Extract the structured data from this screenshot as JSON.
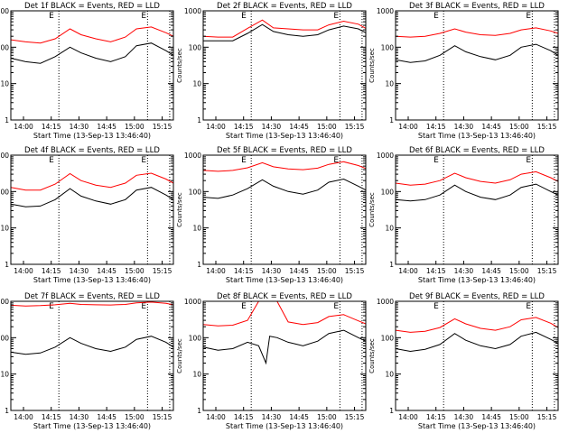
{
  "figure": {
    "xlabel": "Start Time (13-Sep-13 13:46:40)",
    "ylabel": "Counts/sec",
    "x_tick_labels": [
      "14:00",
      "14:15",
      "14:30",
      "14:45",
      "15:00",
      "15:15"
    ],
    "marker_label": "E",
    "colors": {
      "events": "#000000",
      "lld": "#ff0000",
      "axes": "#000000",
      "background": "#ffffff"
    }
  },
  "chart_data": [
    {
      "type": "line",
      "title": "Det 1f BLACK = Events, RED = LLD",
      "xlabel": "Start Time (13-Sep-13 13:46:40)",
      "ylabel": "Counts/sec",
      "yscale": "log",
      "ylim": [
        1,
        1000
      ],
      "y_ticks": [
        1,
        10,
        100,
        1000
      ],
      "y_tick_labels": [
        "1",
        "10",
        "100",
        "1000"
      ],
      "x_ticks": [
        "14:00",
        "14:15",
        "14:30",
        "14:45",
        "15:00",
        "15:15"
      ],
      "xlim_minutes": [
        -9,
        35
      ],
      "markers": [
        "E",
        "E"
      ],
      "marker_minutes": [
        3,
        28
      ],
      "vlines_minutes": [
        4,
        28,
        34
      ],
      "series": [
        {
          "name": "Events",
          "color": "#000000",
          "x_minutes": [
            -9,
            -5,
            -1,
            3,
            7,
            10,
            14,
            18,
            22,
            25,
            29,
            33,
            35
          ],
          "y": [
            50,
            40,
            36,
            55,
            100,
            70,
            50,
            40,
            55,
            110,
            130,
            80,
            60
          ]
        },
        {
          "name": "LLD",
          "color": "#ff0000",
          "x_minutes": [
            -9,
            -5,
            -1,
            3,
            7,
            10,
            14,
            18,
            22,
            25,
            29,
            33,
            35
          ],
          "y": [
            160,
            140,
            130,
            170,
            320,
            220,
            170,
            140,
            190,
            320,
            360,
            250,
            200
          ]
        }
      ]
    },
    {
      "type": "line",
      "title": "Det 2f BLACK = Events, RED = LLD",
      "xlabel": "Start Time (13-Sep-13 13:46:40)",
      "ylabel": "Counts/sec",
      "yscale": "log",
      "ylim": [
        1,
        1000
      ],
      "y_ticks": [
        1,
        10,
        100,
        1000
      ],
      "y_tick_labels": [
        "1",
        "10",
        "100",
        "1000"
      ],
      "x_ticks": [
        "14:00",
        "14:15",
        "14:30",
        "14:45",
        "15:00",
        "15:15"
      ],
      "xlim_minutes": [
        -9,
        35
      ],
      "markers": [
        "E",
        "E"
      ],
      "marker_minutes": [
        3,
        28
      ],
      "vlines_minutes": [
        4,
        28,
        34
      ],
      "series": [
        {
          "name": "Events",
          "color": "#000000",
          "x_minutes": [
            -9,
            -5,
            -1,
            3,
            7,
            10,
            14,
            18,
            22,
            25,
            29,
            33,
            35
          ],
          "y": [
            150,
            150,
            150,
            240,
            420,
            270,
            220,
            200,
            220,
            300,
            380,
            320,
            250
          ]
        },
        {
          "name": "LLD",
          "color": "#ff0000",
          "x_minutes": [
            -9,
            -5,
            -1,
            3,
            7,
            10,
            14,
            18,
            22,
            25,
            29,
            33,
            35
          ],
          "y": [
            200,
            190,
            190,
            330,
            560,
            340,
            320,
            300,
            300,
            410,
            520,
            430,
            330
          ]
        }
      ]
    },
    {
      "type": "line",
      "title": "Det 3f BLACK = Events, RED = LLD",
      "xlabel": "Start Time (13-Sep-13 13:46:40)",
      "ylabel": "Counts/sec",
      "yscale": "log",
      "ylim": [
        1,
        1000
      ],
      "y_ticks": [
        1,
        10,
        100,
        1000
      ],
      "y_tick_labels": [
        "1",
        "10",
        "100",
        "1000"
      ],
      "x_ticks": [
        "14:00",
        "14:15",
        "14:30",
        "14:45",
        "15:00",
        "15:15"
      ],
      "xlim_minutes": [
        -9,
        35
      ],
      "markers": [
        "E",
        "E"
      ],
      "marker_minutes": [
        3,
        28
      ],
      "vlines_minutes": [
        4,
        28,
        34
      ],
      "series": [
        {
          "name": "Events",
          "color": "#000000",
          "x_minutes": [
            -9,
            -5,
            -1,
            3,
            7,
            10,
            14,
            18,
            22,
            25,
            29,
            33,
            35
          ],
          "y": [
            45,
            38,
            42,
            60,
            110,
            75,
            55,
            45,
            60,
            100,
            120,
            80,
            60
          ]
        },
        {
          "name": "LLD",
          "color": "#ff0000",
          "x_minutes": [
            -9,
            -5,
            -1,
            3,
            7,
            10,
            14,
            18,
            22,
            25,
            29,
            33,
            35
          ],
          "y": [
            200,
            190,
            200,
            240,
            320,
            260,
            220,
            210,
            240,
            300,
            340,
            280,
            240
          ]
        }
      ]
    },
    {
      "type": "line",
      "title": "Det 4f BLACK = Events, RED = LLD",
      "xlabel": "Start Time (13-Sep-13 13:46:40)",
      "ylabel": "Counts/sec",
      "yscale": "log",
      "ylim": [
        1,
        1000
      ],
      "y_ticks": [
        1,
        10,
        100,
        1000
      ],
      "y_tick_labels": [
        "1",
        "10",
        "100",
        "1000"
      ],
      "x_ticks": [
        "14:00",
        "14:15",
        "14:30",
        "14:45",
        "15:00",
        "15:15"
      ],
      "xlim_minutes": [
        -9,
        35
      ],
      "markers": [
        "E",
        "E"
      ],
      "marker_minutes": [
        3,
        28
      ],
      "vlines_minutes": [
        4,
        28,
        34
      ],
      "series": [
        {
          "name": "Events",
          "color": "#000000",
          "x_minutes": [
            -9,
            -5,
            -1,
            3,
            7,
            10,
            14,
            18,
            22,
            25,
            29,
            33,
            35
          ],
          "y": [
            45,
            38,
            40,
            60,
            120,
            75,
            55,
            45,
            60,
            110,
            130,
            80,
            60
          ]
        },
        {
          "name": "LLD",
          "color": "#ff0000",
          "x_minutes": [
            -9,
            -5,
            -1,
            3,
            7,
            10,
            14,
            18,
            22,
            25,
            29,
            33,
            35
          ],
          "y": [
            130,
            110,
            110,
            160,
            310,
            200,
            150,
            130,
            170,
            280,
            320,
            220,
            170
          ]
        }
      ]
    },
    {
      "type": "line",
      "title": "Det 5f BLACK = Events, RED = LLD",
      "xlabel": "Start Time (13-Sep-13 13:46:40)",
      "ylabel": "Counts/sec",
      "yscale": "log",
      "ylim": [
        1,
        1000
      ],
      "y_ticks": [
        1,
        10,
        100,
        1000
      ],
      "y_tick_labels": [
        "1",
        "10",
        "100",
        "1000"
      ],
      "x_ticks": [
        "14:00",
        "14:15",
        "14:30",
        "14:45",
        "15:00",
        "15:15"
      ],
      "xlim_minutes": [
        -9,
        35
      ],
      "markers": [
        "E",
        "E"
      ],
      "marker_minutes": [
        3,
        28
      ],
      "vlines_minutes": [
        4,
        28,
        34
      ],
      "series": [
        {
          "name": "Events",
          "color": "#000000",
          "x_minutes": [
            -9,
            -5,
            -1,
            3,
            7,
            10,
            14,
            18,
            22,
            25,
            29,
            33,
            35
          ],
          "y": [
            70,
            65,
            80,
            120,
            210,
            140,
            100,
            85,
            110,
            180,
            220,
            140,
            110
          ]
        },
        {
          "name": "LLD",
          "color": "#ff0000",
          "x_minutes": [
            -9,
            -5,
            -1,
            3,
            7,
            10,
            14,
            18,
            22,
            25,
            29,
            33,
            35
          ],
          "y": [
            380,
            360,
            380,
            450,
            620,
            480,
            420,
            400,
            440,
            560,
            660,
            520,
            430
          ]
        }
      ]
    },
    {
      "type": "line",
      "title": "Det 6f BLACK = Events, RED = LLD",
      "xlabel": "Start Time (13-Sep-13 13:46:40)",
      "ylabel": "Counts/sec",
      "yscale": "log",
      "ylim": [
        1,
        1000
      ],
      "y_ticks": [
        1,
        10,
        100,
        1000
      ],
      "y_tick_labels": [
        "1",
        "10",
        "100",
        "1000"
      ],
      "x_ticks": [
        "14:00",
        "14:15",
        "14:30",
        "14:45",
        "15:00",
        "15:15"
      ],
      "xlim_minutes": [
        -9,
        35
      ],
      "markers": [
        "E",
        "E"
      ],
      "marker_minutes": [
        3,
        28
      ],
      "vlines_minutes": [
        4,
        28,
        34
      ],
      "series": [
        {
          "name": "Events",
          "color": "#000000",
          "x_minutes": [
            -9,
            -5,
            -1,
            3,
            7,
            10,
            14,
            18,
            22,
            25,
            29,
            33,
            35
          ],
          "y": [
            60,
            55,
            60,
            80,
            150,
            100,
            70,
            60,
            80,
            130,
            160,
            100,
            80
          ]
        },
        {
          "name": "LLD",
          "color": "#ff0000",
          "x_minutes": [
            -9,
            -5,
            -1,
            3,
            7,
            10,
            14,
            18,
            22,
            25,
            29,
            33,
            35
          ],
          "y": [
            170,
            150,
            160,
            200,
            320,
            240,
            190,
            170,
            210,
            300,
            350,
            240,
            190
          ]
        }
      ]
    },
    {
      "type": "line",
      "title": "Det 7f BLACK = Events, RED = LLD",
      "xlabel": "Start Time (13-Sep-13 13:46:40)",
      "ylabel": "Counts/sec",
      "yscale": "log",
      "ylim": [
        1,
        1000
      ],
      "y_ticks": [
        1,
        10,
        100,
        1000
      ],
      "y_tick_labels": [
        "1",
        "10",
        "100",
        "1000"
      ],
      "x_ticks": [
        "14:00",
        "14:15",
        "14:30",
        "14:45",
        "15:00",
        "15:15"
      ],
      "xlim_minutes": [
        -9,
        35
      ],
      "markers": [
        "E",
        "E"
      ],
      "marker_minutes": [
        3,
        28
      ],
      "vlines_minutes": [
        4,
        28,
        34
      ],
      "series": [
        {
          "name": "Events",
          "color": "#000000",
          "x_minutes": [
            -9,
            -5,
            -1,
            3,
            7,
            10,
            14,
            18,
            22,
            25,
            29,
            33,
            35
          ],
          "y": [
            40,
            35,
            38,
            55,
            100,
            70,
            50,
            42,
            55,
            90,
            110,
            75,
            55
          ]
        },
        {
          "name": "LLD",
          "color": "#ff0000",
          "x_minutes": [
            -9,
            -5,
            -1,
            3,
            7,
            10,
            14,
            18,
            22,
            25,
            29,
            33,
            35
          ],
          "y": [
            780,
            740,
            760,
            800,
            880,
            820,
            800,
            790,
            820,
            900,
            950,
            880,
            800
          ]
        }
      ]
    },
    {
      "type": "line",
      "title": "Det 8f BLACK = Events, RED = LLD",
      "xlabel": "Start Time (13-Sep-13 13:46:40)",
      "ylabel": "Counts/sec",
      "yscale": "log",
      "ylim": [
        1,
        1000
      ],
      "y_ticks": [
        1,
        10,
        100,
        1000
      ],
      "y_tick_labels": [
        "1",
        "10",
        "100",
        "1000"
      ],
      "x_ticks": [
        "14:00",
        "14:15",
        "14:30",
        "14:45",
        "15:00",
        "15:15"
      ],
      "xlim_minutes": [
        -9,
        35
      ],
      "markers": [
        "E",
        "E"
      ],
      "marker_minutes": [
        3,
        28
      ],
      "vlines_minutes": [
        4,
        28,
        34
      ],
      "series": [
        {
          "name": "Events",
          "color": "#000000",
          "x_minutes": [
            -9,
            -5,
            -1,
            3,
            6,
            8,
            9,
            11,
            14,
            18,
            22,
            25,
            29,
            33,
            35
          ],
          "y": [
            55,
            45,
            50,
            75,
            60,
            20,
            110,
            100,
            75,
            60,
            80,
            130,
            160,
            100,
            80
          ]
        },
        {
          "name": "LLD",
          "color": "#ff0000",
          "x_minutes": [
            -9,
            -5,
            -1,
            3,
            6,
            8,
            9,
            11,
            14,
            18,
            22,
            25,
            29,
            33,
            35
          ],
          "y": [
            230,
            210,
            220,
            300,
            1000,
            1000,
            1000,
            1000,
            270,
            230,
            260,
            380,
            430,
            290,
            240
          ]
        }
      ]
    },
    {
      "type": "line",
      "title": "Det 9f BLACK = Events, RED = LLD",
      "xlabel": "Start Time (13-Sep-13 13:46:40)",
      "ylabel": "Counts/sec",
      "yscale": "log",
      "ylim": [
        1,
        1000
      ],
      "y_ticks": [
        1,
        10,
        100,
        1000
      ],
      "y_tick_labels": [
        "1",
        "10",
        "100",
        "1000"
      ],
      "x_ticks": [
        "14:00",
        "14:15",
        "14:30",
        "14:45",
        "15:00",
        "15:15"
      ],
      "xlim_minutes": [
        -9,
        35
      ],
      "markers": [
        "E",
        "E"
      ],
      "marker_minutes": [
        3,
        28
      ],
      "vlines_minutes": [
        4,
        28,
        34
      ],
      "series": [
        {
          "name": "Events",
          "color": "#000000",
          "x_minutes": [
            -9,
            -5,
            -1,
            3,
            7,
            10,
            14,
            18,
            22,
            25,
            29,
            33,
            35
          ],
          "y": [
            50,
            42,
            48,
            65,
            130,
            85,
            60,
            50,
            65,
            110,
            140,
            90,
            70
          ]
        },
        {
          "name": "LLD",
          "color": "#ff0000",
          "x_minutes": [
            -9,
            -5,
            -1,
            3,
            7,
            10,
            14,
            18,
            22,
            25,
            29,
            33,
            35
          ],
          "y": [
            160,
            140,
            150,
            190,
            330,
            240,
            180,
            160,
            200,
            310,
            360,
            250,
            190
          ]
        }
      ]
    }
  ]
}
